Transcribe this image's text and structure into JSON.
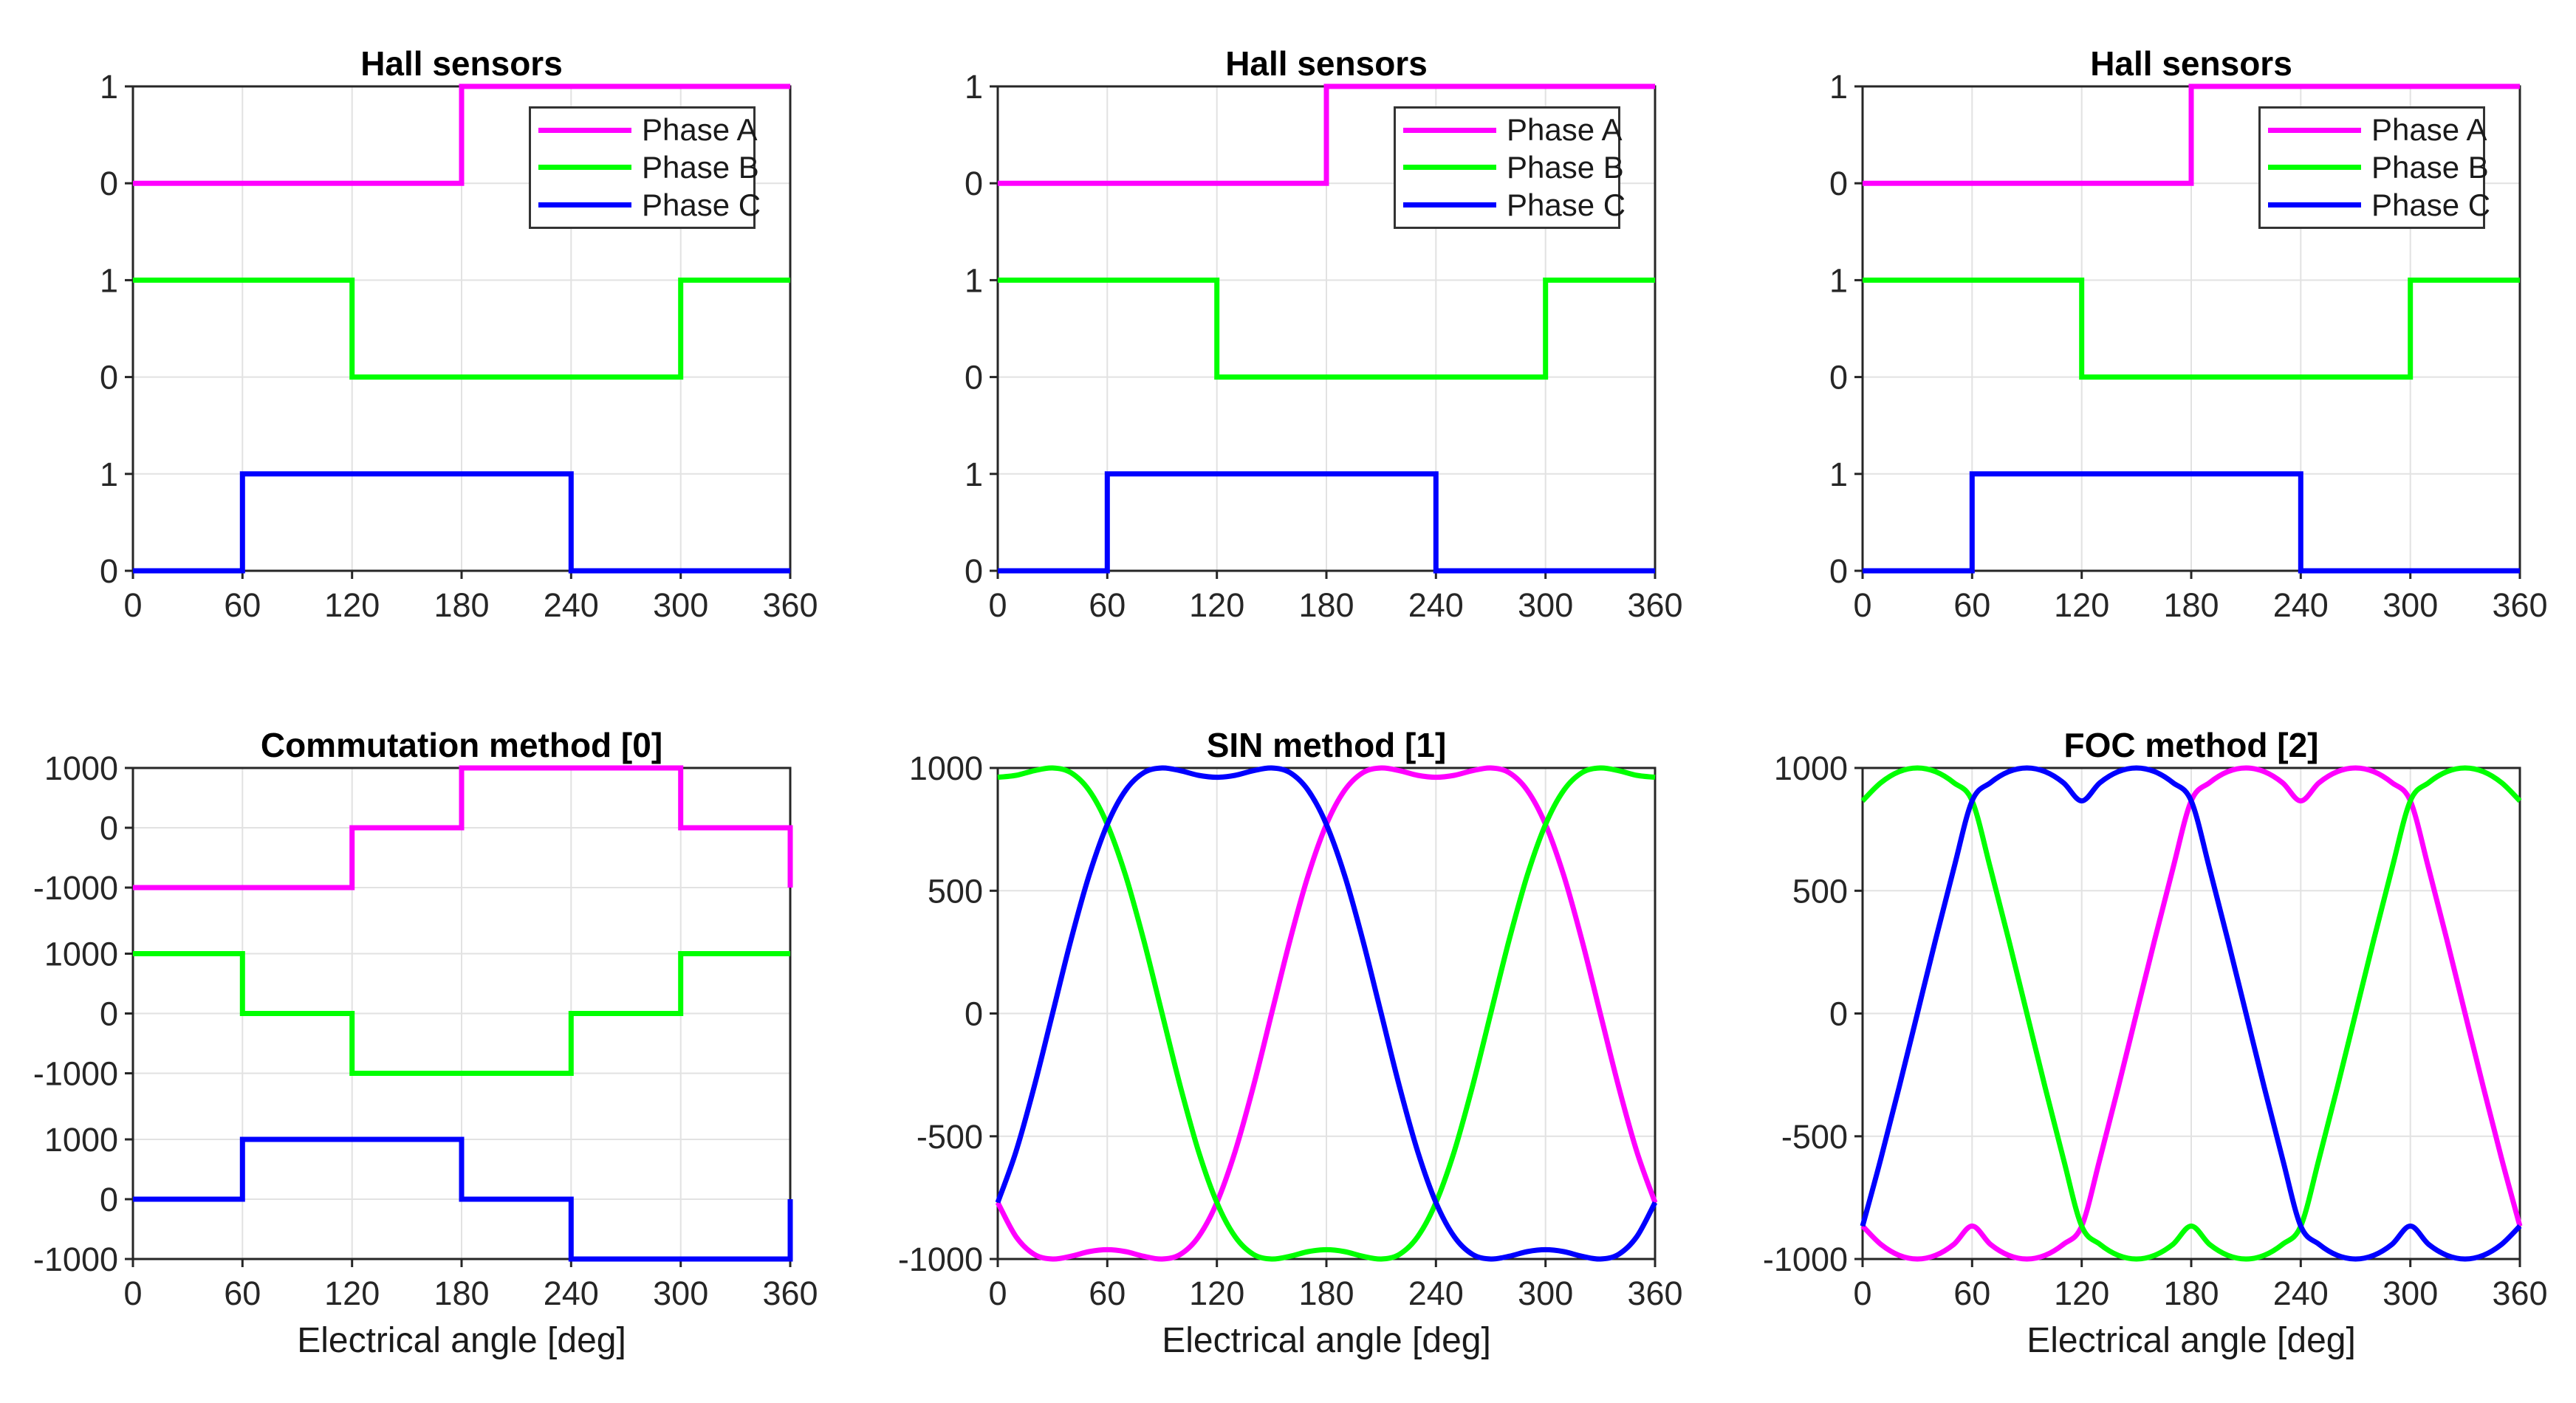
{
  "figure": {
    "background": "#ffffff",
    "accent_colors": {
      "phase_a": "#ff00ff",
      "phase_b": "#00ff00",
      "phase_c": "#0000ff"
    }
  },
  "chart_data": [
    {
      "type": "line",
      "kind": "hall",
      "title": "Hall sensors",
      "xlabel": "",
      "xlim": [
        0,
        360
      ],
      "x_ticks": [
        0,
        60,
        120,
        180,
        240,
        300,
        360
      ],
      "band_tick_labels": [
        "1",
        "0"
      ],
      "grid": true,
      "legend": [
        "Phase A",
        "Phase B",
        "Phase C"
      ],
      "legend_position": "upper right",
      "series": [
        {
          "name": "Phase A",
          "color": "#ff00ff",
          "type": "step",
          "steps_deg_value": [
            [
              0,
              180,
              0
            ],
            [
              180,
              360,
              1
            ]
          ],
          "wrap_to_at_360": null
        },
        {
          "name": "Phase B",
          "color": "#00ff00",
          "type": "step",
          "steps_deg_value": [
            [
              0,
              120,
              1
            ],
            [
              120,
              300,
              0
            ],
            [
              300,
              360,
              1
            ]
          ],
          "wrap_to_at_360": null
        },
        {
          "name": "Phase C",
          "color": "#0000ff",
          "type": "step",
          "steps_deg_value": [
            [
              0,
              60,
              0
            ],
            [
              60,
              240,
              1
            ],
            [
              240,
              360,
              0
            ]
          ],
          "wrap_to_at_360": null
        }
      ]
    },
    {
      "type": "line",
      "kind": "hall",
      "title": "Hall sensors",
      "xlabel": "",
      "xlim": [
        0,
        360
      ],
      "x_ticks": [
        0,
        60,
        120,
        180,
        240,
        300,
        360
      ],
      "band_tick_labels": [
        "1",
        "0"
      ],
      "grid": true,
      "legend": [
        "Phase A",
        "Phase B",
        "Phase C"
      ],
      "legend_position": "upper right",
      "series": [
        {
          "name": "Phase A",
          "color": "#ff00ff",
          "type": "step",
          "steps_deg_value": [
            [
              0,
              180,
              0
            ],
            [
              180,
              360,
              1
            ]
          ],
          "wrap_to_at_360": null
        },
        {
          "name": "Phase B",
          "color": "#00ff00",
          "type": "step",
          "steps_deg_value": [
            [
              0,
              120,
              1
            ],
            [
              120,
              300,
              0
            ],
            [
              300,
              360,
              1
            ]
          ],
          "wrap_to_at_360": null
        },
        {
          "name": "Phase C",
          "color": "#0000ff",
          "type": "step",
          "steps_deg_value": [
            [
              0,
              60,
              0
            ],
            [
              60,
              240,
              1
            ],
            [
              240,
              360,
              0
            ]
          ],
          "wrap_to_at_360": null
        }
      ]
    },
    {
      "type": "line",
      "kind": "hall",
      "title": "Hall sensors",
      "xlabel": "",
      "xlim": [
        0,
        360
      ],
      "x_ticks": [
        0,
        60,
        120,
        180,
        240,
        300,
        360
      ],
      "band_tick_labels": [
        "1",
        "0"
      ],
      "grid": true,
      "legend": [
        "Phase A",
        "Phase B",
        "Phase C"
      ],
      "legend_position": "upper right",
      "series": [
        {
          "name": "Phase A",
          "color": "#ff00ff",
          "type": "step",
          "steps_deg_value": [
            [
              0,
              180,
              0
            ],
            [
              180,
              360,
              1
            ]
          ],
          "wrap_to_at_360": null
        },
        {
          "name": "Phase B",
          "color": "#00ff00",
          "type": "step",
          "steps_deg_value": [
            [
              0,
              120,
              1
            ],
            [
              120,
              300,
              0
            ],
            [
              300,
              360,
              1
            ]
          ],
          "wrap_to_at_360": null
        },
        {
          "name": "Phase C",
          "color": "#0000ff",
          "type": "step",
          "steps_deg_value": [
            [
              0,
              60,
              0
            ],
            [
              60,
              240,
              1
            ],
            [
              240,
              360,
              0
            ]
          ],
          "wrap_to_at_360": null
        }
      ]
    },
    {
      "type": "line",
      "kind": "bands",
      "title": "Commutation method [0]",
      "xlabel": "Electrical angle [deg]",
      "xlim": [
        0,
        360
      ],
      "x_ticks": [
        0,
        60,
        120,
        180,
        240,
        300,
        360
      ],
      "band_tick_labels": [
        "1000",
        "0",
        "-1000"
      ],
      "band_ylim": [
        -1000,
        1000
      ],
      "grid": true,
      "legend": null,
      "series": [
        {
          "name": "Phase A",
          "color": "#ff00ff",
          "type": "step",
          "steps_deg_value": [
            [
              0,
              120,
              -1000
            ],
            [
              120,
              180,
              0
            ],
            [
              180,
              300,
              1000
            ],
            [
              300,
              360,
              0
            ]
          ],
          "wrap_to_at_360": -1000
        },
        {
          "name": "Phase B",
          "color": "#00ff00",
          "type": "step",
          "steps_deg_value": [
            [
              0,
              60,
              1000
            ],
            [
              60,
              120,
              0
            ],
            [
              120,
              240,
              -1000
            ],
            [
              240,
              300,
              0
            ],
            [
              300,
              360,
              1000
            ]
          ],
          "wrap_to_at_360": null
        },
        {
          "name": "Phase C",
          "color": "#0000ff",
          "type": "step",
          "steps_deg_value": [
            [
              0,
              60,
              0
            ],
            [
              60,
              180,
              1000
            ],
            [
              180,
              240,
              0
            ],
            [
              240,
              360,
              -1000
            ]
          ],
          "wrap_to_at_360": 0
        }
      ]
    },
    {
      "type": "line",
      "kind": "continuous",
      "title": "SIN method [1]",
      "xlabel": "Electrical angle [deg]",
      "xlim": [
        0,
        360
      ],
      "ylim": [
        -1000,
        1000
      ],
      "x_ticks": [
        0,
        60,
        120,
        180,
        240,
        300,
        360
      ],
      "y_ticks": [
        1000,
        500,
        0,
        -500,
        -1000
      ],
      "grid": true,
      "legend": null,
      "x_step_deg": 10,
      "series": [
        {
          "name": "Phase A",
          "color": "#ff00ff",
          "type": "smooth",
          "values": [
            -770,
            -909,
            -981,
            -1000,
            -989,
            -970,
            -962,
            -970,
            -989,
            -1000,
            -981,
            -909,
            -770,
            -562,
            -297,
            0,
            297,
            562,
            770,
            909,
            981,
            1000,
            989,
            970,
            962,
            970,
            989,
            1000,
            981,
            909,
            770,
            562,
            297,
            0,
            -297,
            -562,
            -770
          ]
        },
        {
          "name": "Phase B",
          "color": "#00ff00",
          "type": "smooth",
          "values": [
            962,
            970,
            989,
            1000,
            981,
            909,
            770,
            562,
            297,
            0,
            -297,
            -562,
            -770,
            -909,
            -981,
            -1000,
            -989,
            -970,
            -962,
            -970,
            -989,
            -1000,
            -981,
            -909,
            -770,
            -562,
            -297,
            0,
            297,
            562,
            770,
            909,
            981,
            1000,
            989,
            970,
            962
          ]
        },
        {
          "name": "Phase C",
          "color": "#0000ff",
          "type": "smooth",
          "values": [
            -770,
            -562,
            -297,
            0,
            297,
            562,
            770,
            909,
            981,
            1000,
            989,
            970,
            962,
            970,
            989,
            1000,
            981,
            909,
            770,
            562,
            297,
            0,
            -297,
            -562,
            -770,
            -909,
            -981,
            -1000,
            -989,
            -970,
            -962,
            -970,
            -989,
            -1000,
            -981,
            -909,
            -770
          ]
        }
      ]
    },
    {
      "type": "line",
      "kind": "continuous",
      "title": "FOC method [2]",
      "xlabel": "Electrical angle [deg]",
      "xlim": [
        0,
        360
      ],
      "ylim": [
        -1000,
        1000
      ],
      "x_ticks": [
        0,
        60,
        120,
        180,
        240,
        300,
        360
      ],
      "y_ticks": [
        1000,
        500,
        0,
        -500,
        -1000
      ],
      "grid": true,
      "legend": null,
      "x_step_deg": 10,
      "series": [
        {
          "name": "Phase A",
          "color": "#ff00ff",
          "type": "smooth",
          "values": [
            -866,
            -940,
            -985,
            -1000,
            -985,
            -940,
            -866,
            -940,
            -985,
            -1000,
            -985,
            -940,
            -866,
            -592,
            -301,
            0,
            301,
            592,
            866,
            940,
            985,
            1000,
            985,
            940,
            866,
            940,
            985,
            1000,
            985,
            940,
            866,
            592,
            301,
            0,
            -301,
            -592,
            -866
          ]
        },
        {
          "name": "Phase B",
          "color": "#00ff00",
          "type": "smooth",
          "values": [
            866,
            940,
            985,
            1000,
            985,
            940,
            866,
            592,
            301,
            0,
            -301,
            -592,
            -866,
            -940,
            -985,
            -1000,
            -985,
            -940,
            -866,
            -940,
            -985,
            -1000,
            -985,
            -940,
            -866,
            -592,
            -301,
            0,
            301,
            592,
            866,
            940,
            985,
            1000,
            985,
            940,
            866
          ]
        },
        {
          "name": "Phase C",
          "color": "#0000ff",
          "type": "smooth",
          "values": [
            -866,
            -592,
            -301,
            0,
            301,
            592,
            866,
            940,
            985,
            1000,
            985,
            940,
            866,
            940,
            985,
            1000,
            985,
            940,
            866,
            592,
            301,
            0,
            -301,
            -592,
            -866,
            -940,
            -985,
            -1000,
            -985,
            -940,
            -866,
            -940,
            -985,
            -1000,
            -985,
            -940,
            -866
          ]
        }
      ]
    }
  ]
}
